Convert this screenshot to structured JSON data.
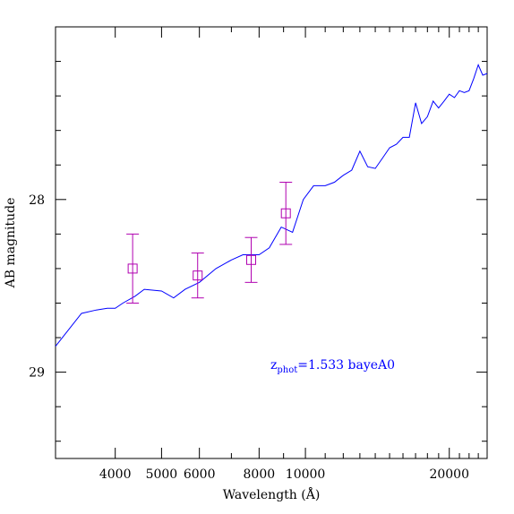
{
  "chart_data": {
    "type": "line",
    "xlabel": "Wavelength (Å)",
    "ylabel": "AB magnitude",
    "xscale": "log",
    "xlim": [
      3000,
      24000
    ],
    "ylim": [
      29.5,
      27.0
    ],
    "x_ticks_major": [
      4000,
      5000,
      6000,
      8000,
      10000,
      20000
    ],
    "x_tick_labels": [
      "4000",
      "5000",
      "6000",
      "8000",
      "10000",
      "20000"
    ],
    "y_ticks_major": [
      28,
      29
    ],
    "y_tick_labels": [
      "28",
      "29"
    ],
    "grid": false,
    "annotation": {
      "z_main": "z",
      "z_sub": "phot",
      "rest": "=1.533 bayeA0",
      "color": "#0000ff"
    },
    "series": [
      {
        "style": "line",
        "color": "#0000ff",
        "x": [
          3000,
          3400,
          3650,
          3850,
          4000,
          4150,
          4400,
          4600,
          5000,
          5300,
          5600,
          6000,
          6500,
          7000,
          7400,
          7700,
          8000,
          8400,
          8900,
          9400,
          9900,
          10400,
          11000,
          11500,
          12000,
          12500,
          13000,
          13500,
          14000,
          14500,
          15000,
          15500,
          16000,
          16500,
          17000,
          17500,
          18000,
          18500,
          19000,
          19500,
          20000,
          20500,
          21000,
          21500,
          22000,
          22500,
          23000,
          23500,
          24000
        ],
        "y": [
          28.85,
          28.66,
          28.64,
          28.63,
          28.63,
          28.6,
          28.56,
          28.52,
          28.53,
          28.57,
          28.52,
          28.48,
          28.4,
          28.35,
          28.32,
          28.32,
          28.32,
          28.28,
          28.16,
          28.19,
          28.0,
          27.92,
          27.92,
          27.9,
          27.86,
          27.83,
          27.72,
          27.81,
          27.82,
          27.76,
          27.7,
          27.68,
          27.64,
          27.64,
          27.44,
          27.56,
          27.52,
          27.43,
          27.47,
          27.43,
          27.39,
          27.41,
          27.37,
          27.38,
          27.37,
          27.3,
          27.22,
          27.28,
          27.27
        ]
      },
      {
        "style": "errorbar-square",
        "color": "#b000b0",
        "x": [
          4350,
          5950,
          7700,
          9100
        ],
        "y": [
          28.4,
          28.44,
          28.35,
          28.08
        ],
        "yerr": [
          0.2,
          0.13,
          0.13,
          0.18
        ]
      }
    ]
  }
}
